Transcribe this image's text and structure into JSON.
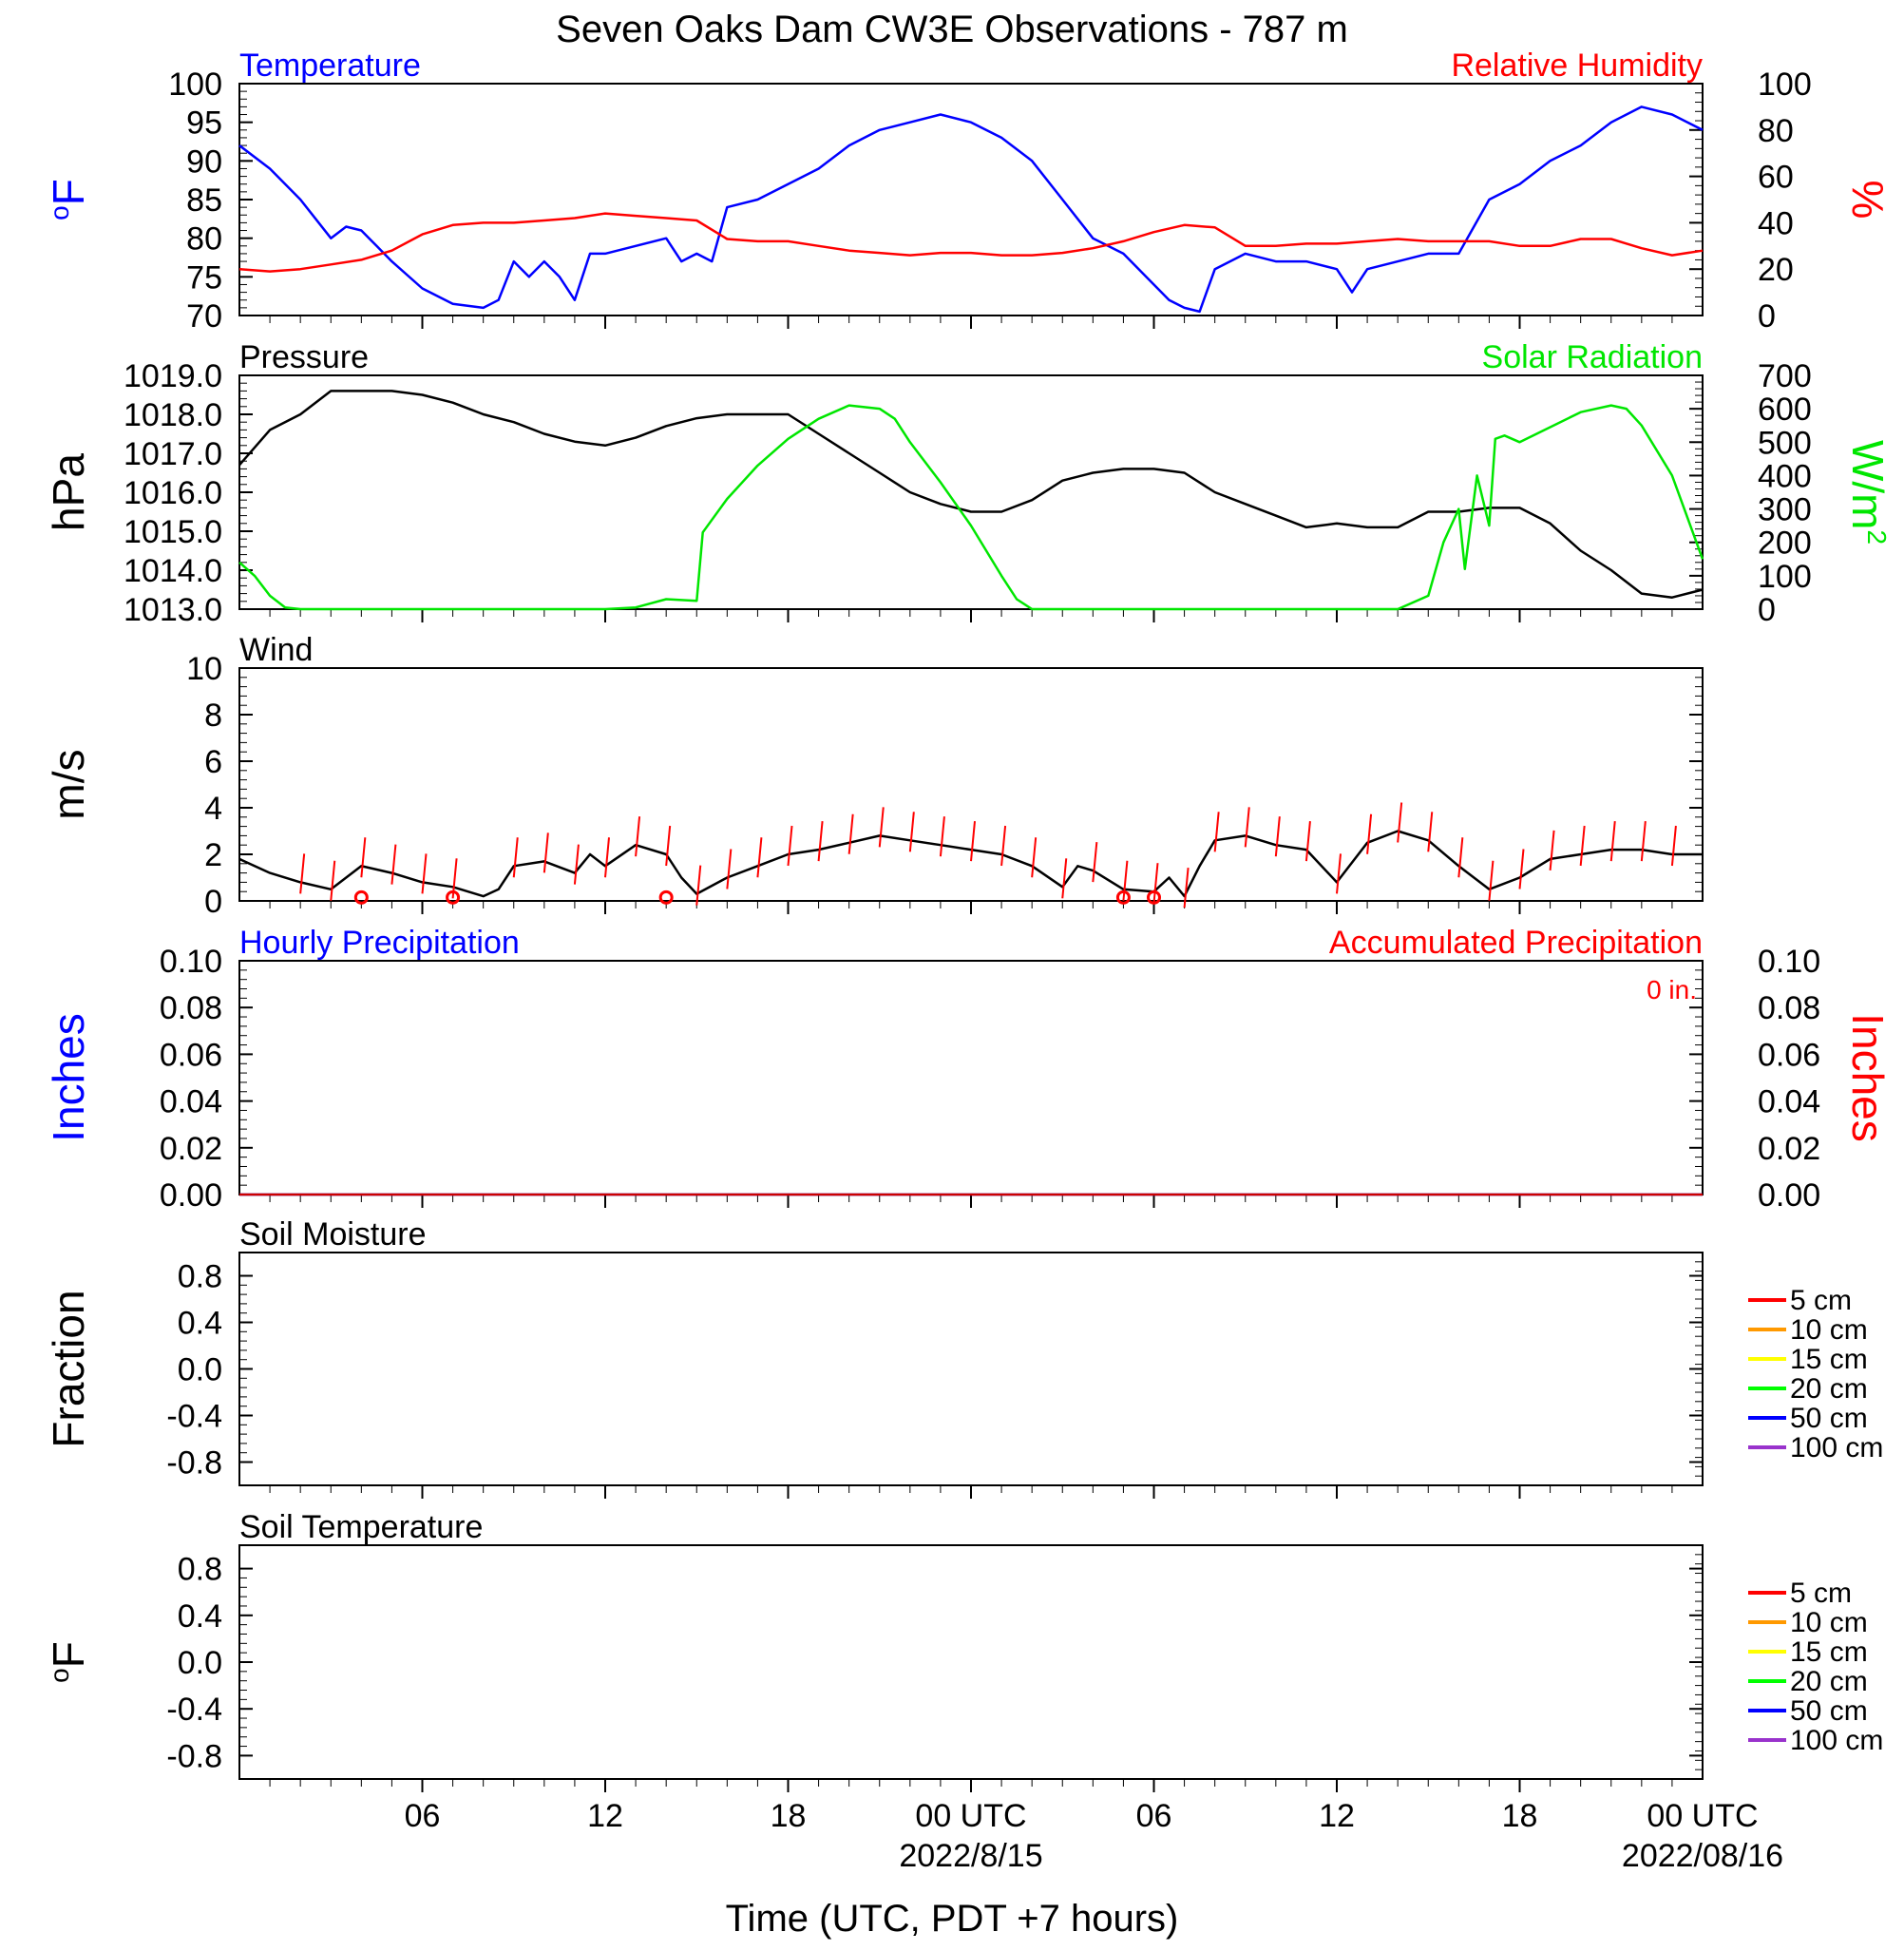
{
  "figure": {
    "title": "Seven Oaks Dam CW3E Observations - 787 m",
    "xlabel": "Time (UTC, PDT +7 hours)",
    "x_ticks": [
      "06",
      "12",
      "18",
      "00 UTC",
      "06",
      "12",
      "18",
      "00 UTC"
    ],
    "x_dates": [
      {
        "label": "2022/8/15",
        "at_hour": 24
      },
      {
        "label": "2022/08/16",
        "at_hour": 48
      }
    ],
    "colors": {
      "blue": "#0000ff",
      "red": "#ff0000",
      "green": "#00e600",
      "black": "#000000"
    }
  },
  "chart_data": [
    {
      "type": "line",
      "left_title": "Temperature",
      "right_title": "Relative Humidity",
      "ylabel": "oF",
      "y2label": "%",
      "ylim": [
        70,
        100
      ],
      "y_ticks": [
        100,
        95,
        90,
        85,
        80,
        75,
        70
      ],
      "y2lim": [
        0,
        100
      ],
      "y2_ticks": [
        100,
        80,
        60,
        40,
        20,
        0
      ],
      "x_units": "hours since 2022-08-14 01 UTC (approx.)",
      "series": [
        {
          "name": "Temperature",
          "axis": "left",
          "color": "#0000ff",
          "x": [
            0,
            1,
            2,
            3,
            3.5,
            4,
            4.5,
            5,
            6,
            7,
            8,
            8.5,
            9,
            9.5,
            10,
            10.5,
            11,
            11.5,
            12,
            13,
            14,
            14.5,
            15,
            15.5,
            16,
            17,
            18,
            19,
            20,
            21,
            22,
            23,
            24,
            25,
            26,
            27,
            28,
            29,
            30,
            30.5,
            31,
            31.5,
            32,
            33,
            34,
            35,
            36,
            36.5,
            37,
            38,
            39,
            40,
            41,
            42,
            43,
            44,
            45,
            46,
            47,
            48
          ],
          "y": [
            92,
            89,
            85,
            80,
            81.5,
            81,
            79,
            77,
            73.5,
            71.5,
            71,
            72,
            77,
            75,
            77,
            75,
            72,
            78,
            78,
            79,
            80,
            77,
            78,
            77,
            84,
            85,
            87,
            89,
            92,
            94,
            95,
            96,
            95,
            93,
            90,
            85,
            80,
            78,
            74,
            72,
            71,
            70.5,
            76,
            78,
            77,
            77,
            76,
            73,
            76,
            77,
            78,
            78,
            85,
            87,
            90,
            92,
            95,
            97,
            96,
            94
          ]
        },
        {
          "name": "Relative Humidity",
          "axis": "right",
          "color": "#ff0000",
          "x": [
            0,
            1,
            2,
            3,
            4,
            5,
            6,
            7,
            8,
            9,
            10,
            11,
            12,
            13,
            14,
            15,
            16,
            17,
            18,
            19,
            20,
            21,
            22,
            23,
            24,
            25,
            26,
            27,
            28,
            29,
            30,
            31,
            32,
            33,
            34,
            35,
            36,
            37,
            38,
            39,
            40,
            41,
            42,
            43,
            44,
            45,
            46,
            47,
            48
          ],
          "y": [
            20,
            19,
            20,
            22,
            24,
            28,
            35,
            39,
            40,
            40,
            41,
            42,
            44,
            43,
            42,
            41,
            33,
            32,
            32,
            30,
            28,
            27,
            26,
            27,
            27,
            26,
            26,
            27,
            29,
            32,
            36,
            39,
            38,
            30,
            30,
            31,
            31,
            32,
            33,
            32,
            32,
            32,
            30,
            30,
            33,
            33,
            29,
            26,
            28
          ]
        }
      ]
    },
    {
      "type": "line",
      "left_title": "Pressure",
      "right_title": "Solar Radiation",
      "ylabel": "hPa",
      "y2label": "W/m2",
      "ylim": [
        1013,
        1019
      ],
      "y_ticks": [
        "1019.0",
        "1018.0",
        "1017.0",
        "1016.0",
        "1015.0",
        "1014.0",
        "1013.0"
      ],
      "y2lim": [
        0,
        700
      ],
      "y2_ticks": [
        700,
        600,
        500,
        400,
        300,
        200,
        100,
        0
      ],
      "series": [
        {
          "name": "Pressure",
          "axis": "left",
          "color": "#000000",
          "x": [
            0,
            1,
            2,
            3,
            4,
            5,
            6,
            7,
            8,
            9,
            10,
            11,
            12,
            13,
            14,
            15,
            16,
            17,
            18,
            19,
            20,
            21,
            22,
            23,
            24,
            25,
            26,
            27,
            28,
            29,
            30,
            31,
            32,
            33,
            34,
            35,
            36,
            37,
            38,
            39,
            40,
            41,
            42,
            43,
            44,
            45,
            46,
            47,
            48
          ],
          "y": [
            1016.7,
            1017.6,
            1018.0,
            1018.6,
            1018.6,
            1018.6,
            1018.5,
            1018.3,
            1018.0,
            1017.8,
            1017.5,
            1017.3,
            1017.2,
            1017.4,
            1017.7,
            1017.9,
            1018.0,
            1018.0,
            1018.0,
            1017.5,
            1017.0,
            1016.5,
            1016.0,
            1015.7,
            1015.5,
            1015.5,
            1015.8,
            1016.3,
            1016.5,
            1016.6,
            1016.6,
            1016.5,
            1016.0,
            1015.7,
            1015.4,
            1015.1,
            1015.2,
            1015.1,
            1015.1,
            1015.5,
            1015.5,
            1015.6,
            1015.6,
            1015.2,
            1014.5,
            1014.0,
            1013.4,
            1013.3,
            1013.5
          ]
        },
        {
          "name": "Solar Radiation",
          "axis": "right",
          "color": "#00e600",
          "x": [
            0,
            0.5,
            1,
            1.5,
            2,
            5,
            10,
            12,
            13,
            14,
            15,
            15.2,
            16,
            17,
            18,
            19,
            20,
            21,
            21.5,
            22,
            23,
            24,
            25,
            25.5,
            26,
            27,
            30,
            35,
            38,
            39,
            39.5,
            40,
            40.2,
            40.6,
            41,
            41.2,
            41.5,
            42,
            44,
            45,
            45.5,
            46,
            47,
            48
          ],
          "y": [
            140,
            100,
            40,
            5,
            0,
            0,
            0,
            0,
            5,
            30,
            25,
            230,
            330,
            430,
            510,
            570,
            610,
            600,
            570,
            500,
            380,
            250,
            100,
            30,
            0,
            0,
            0,
            0,
            0,
            40,
            200,
            300,
            120,
            400,
            250,
            510,
            520,
            500,
            590,
            610,
            600,
            550,
            400,
            150
          ]
        }
      ]
    },
    {
      "type": "line",
      "left_title": "Wind",
      "ylabel": "m/s",
      "ylim": [
        0,
        10
      ],
      "y_ticks": [
        10,
        8,
        6,
        4,
        2,
        0
      ],
      "series": [
        {
          "name": "Wind",
          "axis": "left",
          "color": "#000000",
          "x": [
            0,
            1,
            2,
            3,
            4,
            5,
            6,
            7,
            8,
            8.5,
            9,
            10,
            11,
            11.5,
            12,
            13,
            14,
            14.5,
            15,
            16,
            17,
            18,
            19,
            20,
            21,
            22,
            23,
            24,
            25,
            26,
            27,
            27.5,
            28,
            29,
            30,
            30.5,
            31,
            31.5,
            32,
            33,
            34,
            35,
            36,
            37,
            38,
            39,
            40,
            41,
            42,
            43,
            44,
            45,
            46,
            47,
            48
          ],
          "y": [
            1.8,
            1.2,
            0.8,
            0.5,
            1.5,
            1.2,
            0.8,
            0.6,
            0.2,
            0.5,
            1.5,
            1.7,
            1.2,
            2.0,
            1.5,
            2.4,
            2.0,
            1.0,
            0.3,
            1.0,
            1.5,
            2.0,
            2.2,
            2.5,
            2.8,
            2.6,
            2.4,
            2.2,
            2.0,
            1.5,
            0.6,
            1.5,
            1.3,
            0.5,
            0.4,
            1.0,
            0.2,
            1.5,
            2.6,
            2.8,
            2.4,
            2.2,
            0.8,
            2.5,
            3.0,
            2.6,
            1.5,
            0.5,
            1.0,
            1.8,
            2.0,
            2.2,
            2.2,
            2.0,
            2.0
          ]
        }
      ],
      "barb_hours": [
        2,
        3,
        4,
        5,
        6,
        7,
        9,
        10,
        11,
        12,
        13,
        14,
        15,
        16,
        17,
        18,
        19,
        20,
        21,
        22,
        23,
        24,
        25,
        26,
        27,
        28,
        29,
        30,
        31,
        32,
        33,
        34,
        35,
        36,
        37,
        38,
        39,
        40,
        41,
        42,
        43,
        44,
        45,
        46,
        47
      ],
      "calm_hours": [
        4,
        7,
        14,
        29,
        30
      ]
    },
    {
      "type": "line",
      "left_title": "Hourly Precipitation",
      "right_title": "Accumulated Precipitation",
      "annotation": "0 in.",
      "ylabel": "Inches",
      "y2label": "Inches",
      "ylim": [
        0,
        0.1
      ],
      "y_ticks": [
        "0.10",
        "0.08",
        "0.06",
        "0.04",
        "0.02",
        "0.00"
      ],
      "y2_ticks": [
        "0.10",
        "0.08",
        "0.06",
        "0.04",
        "0.02",
        "0.00"
      ],
      "series": [
        {
          "name": "Hourly Precipitation",
          "axis": "left",
          "color": "#0000ff",
          "x": [
            0,
            48
          ],
          "y": [
            0,
            0
          ]
        },
        {
          "name": "Accumulated Precipitation",
          "axis": "right",
          "color": "#cc0000",
          "x": [
            0,
            48
          ],
          "y": [
            0,
            0
          ]
        }
      ]
    },
    {
      "type": "line",
      "left_title": "Soil Moisture",
      "ylabel": "Fraction",
      "ylim": [
        -1,
        1
      ],
      "y_ticks": [
        "0.8",
        "0.4",
        "0.0",
        "-0.4",
        "-0.8"
      ],
      "legend": [
        {
          "label": "5 cm",
          "color": "#ff0000"
        },
        {
          "label": "10 cm",
          "color": "#ff9900"
        },
        {
          "label": "15 cm",
          "color": "#ffff00"
        },
        {
          "label": "20 cm",
          "color": "#00ff00"
        },
        {
          "label": "50 cm",
          "color": "#0000ff"
        },
        {
          "label": "100 cm",
          "color": "#9933cc"
        }
      ],
      "series": []
    },
    {
      "type": "line",
      "left_title": "Soil Temperature",
      "ylabel": "oF",
      "ylim": [
        -1,
        1
      ],
      "y_ticks": [
        "0.8",
        "0.4",
        "0.0",
        "-0.4",
        "-0.8"
      ],
      "legend": [
        {
          "label": "5 cm",
          "color": "#ff0000"
        },
        {
          "label": "10 cm",
          "color": "#ff9900"
        },
        {
          "label": "15 cm",
          "color": "#ffff00"
        },
        {
          "label": "20 cm",
          "color": "#00ff00"
        },
        {
          "label": "50 cm",
          "color": "#0000ff"
        },
        {
          "label": "100 cm",
          "color": "#9933cc"
        }
      ],
      "series": []
    }
  ]
}
